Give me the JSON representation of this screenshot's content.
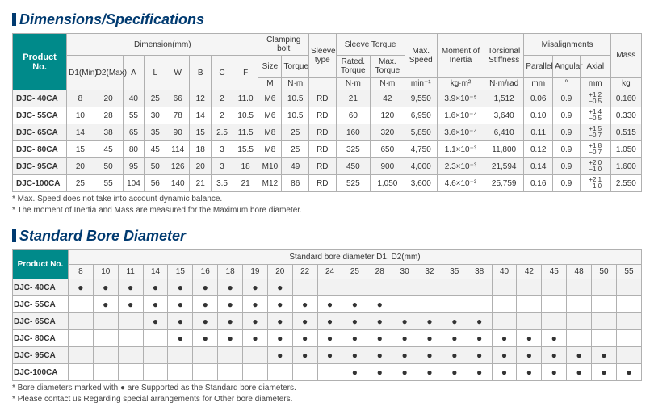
{
  "titles": {
    "dimensions": "Dimensions/Specifications",
    "bore": "Standard Bore Diameter"
  },
  "dim_headers": {
    "product": "Product No.",
    "dimension": "Dimension(mm)",
    "clamping": "Clamping bolt",
    "sleeve_type": "Sleeve\ntype",
    "sleeve_torque": "Sleeve Torque",
    "max_speed": "Max. Speed",
    "moi": "Moment of Inertia",
    "torsional": "Torsional Stiffness",
    "misalign": "Misalignments",
    "mass": "Mass",
    "d1": "D1(Min)",
    "d2": "D2(Max)",
    "a": "A",
    "l": "L",
    "w": "W",
    "b": "B",
    "c": "C",
    "f": "F",
    "size": "Size",
    "torque": "Torque",
    "rated": "Rated. Torque",
    "maxt": "Max. Torque",
    "parallel": "Parallel",
    "angular": "Angular",
    "axial": "Axial",
    "m": "M",
    "nm": "N·m",
    "min1": "min⁻¹",
    "kgm2": "kg·m²",
    "nmrad": "N·m/rad",
    "mm": "mm",
    "deg": "°",
    "kg": "kg"
  },
  "dim_rows": [
    {
      "p": "DJC-  40CA",
      "d1": "8",
      "d2": "20",
      "a": "40",
      "l": "25",
      "w": "66",
      "b": "12",
      "c": "2",
      "f": "11.0",
      "m": "M6",
      "t": "10.5",
      "st": "RD",
      "rt": "21",
      "mt": "42",
      "ms": "9,550",
      "moi": "3.9×10⁻⁵",
      "ts": "1,512",
      "par": "0.06",
      "ang": "0.9",
      "axp": "+1.2",
      "axm": "−0.5",
      "mass": "0.160"
    },
    {
      "p": "DJC-  55CA",
      "d1": "10",
      "d2": "28",
      "a": "55",
      "l": "30",
      "w": "78",
      "b": "14",
      "c": "2",
      "f": "10.5",
      "m": "M6",
      "t": "10.5",
      "st": "RD",
      "rt": "60",
      "mt": "120",
      "ms": "6,950",
      "moi": "1.6×10⁻⁴",
      "ts": "3,640",
      "par": "0.10",
      "ang": "0.9",
      "axp": "+1.4",
      "axm": "−0.5",
      "mass": "0.330"
    },
    {
      "p": "DJC-  65CA",
      "d1": "14",
      "d2": "38",
      "a": "65",
      "l": "35",
      "w": "90",
      "b": "15",
      "c": "2.5",
      "f": "11.5",
      "m": "M8",
      "t": "25",
      "st": "RD",
      "rt": "160",
      "mt": "320",
      "ms": "5,850",
      "moi": "3.6×10⁻⁴",
      "ts": "6,410",
      "par": "0.11",
      "ang": "0.9",
      "axp": "+1.5",
      "axm": "−0.7",
      "mass": "0.515"
    },
    {
      "p": "DJC-  80CA",
      "d1": "15",
      "d2": "45",
      "a": "80",
      "l": "45",
      "w": "114",
      "b": "18",
      "c": "3",
      "f": "15.5",
      "m": "M8",
      "t": "25",
      "st": "RD",
      "rt": "325",
      "mt": "650",
      "ms": "4,750",
      "moi": "1.1×10⁻³",
      "ts": "11,800",
      "par": "0.12",
      "ang": "0.9",
      "axp": "+1.8",
      "axm": "−0.7",
      "mass": "1.050"
    },
    {
      "p": "DJC-  95CA",
      "d1": "20",
      "d2": "50",
      "a": "95",
      "l": "50",
      "w": "126",
      "b": "20",
      "c": "3",
      "f": "18",
      "m": "M10",
      "t": "49",
      "st": "RD",
      "rt": "450",
      "mt": "900",
      "ms": "4,000",
      "moi": "2.3×10⁻³",
      "ts": "21,594",
      "par": "0.14",
      "ang": "0.9",
      "axp": "+2.0",
      "axm": "−1.0",
      "mass": "1.600"
    },
    {
      "p": "DJC-100CA",
      "d1": "25",
      "d2": "55",
      "a": "104",
      "l": "56",
      "w": "140",
      "b": "21",
      "c": "3.5",
      "f": "21",
      "m": "M12",
      "t": "86",
      "st": "RD",
      "rt": "525",
      "mt": "1,050",
      "ms": "3,600",
      "moi": "4.6×10⁻³",
      "ts": "25,759",
      "par": "0.16",
      "ang": "0.9",
      "axp": "+2.1",
      "axm": "−1.0",
      "mass": "2.550"
    }
  ],
  "footnotes_dim": [
    "* Max. Speed does not take into account dynamic balance.",
    "* The moment of Inertia and Mass are measured for the Maximum bore diameter."
  ],
  "bore_header_title": "Standard bore diameter D1, D2(mm)",
  "bore_cols": [
    "8",
    "10",
    "11",
    "14",
    "15",
    "16",
    "18",
    "19",
    "20",
    "22",
    "24",
    "25",
    "28",
    "30",
    "32",
    "35",
    "38",
    "40",
    "42",
    "45",
    "48",
    "50",
    "55"
  ],
  "bore_rows": [
    {
      "p": "DJC-  40CA",
      "min": 8,
      "max": 20
    },
    {
      "p": "DJC-  55CA",
      "min": 10,
      "max": 28
    },
    {
      "p": "DJC-  65CA",
      "min": 14,
      "max": 38
    },
    {
      "p": "DJC-  80CA",
      "min": 15,
      "max": 45
    },
    {
      "p": "DJC-  95CA",
      "min": 20,
      "max": 50
    },
    {
      "p": "DJC-100CA",
      "min": 25,
      "max": 55
    }
  ],
  "footnotes_bore": [
    "* Bore diameters marked with ● are Supported as the Standard bore diameters.",
    "* Please contact us Regarding special arrangements for Other bore diameters."
  ]
}
